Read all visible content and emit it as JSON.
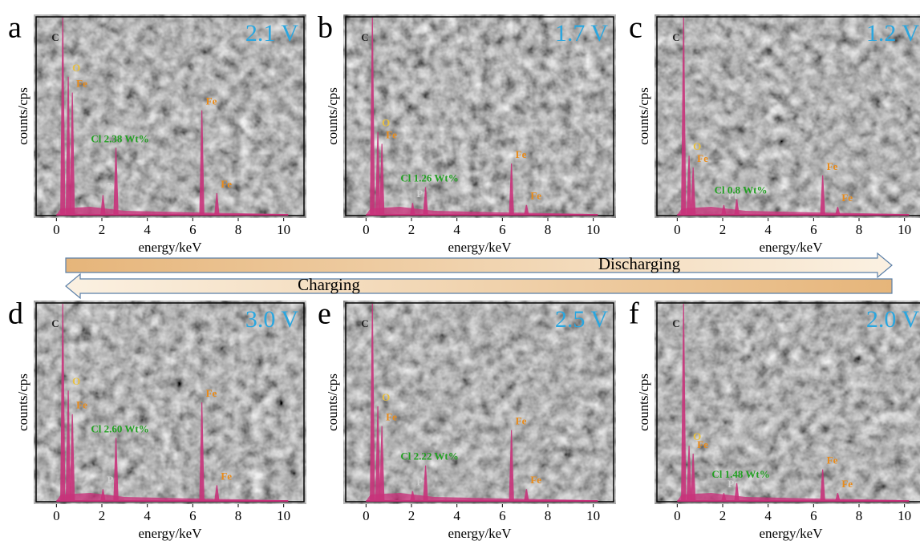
{
  "chart_data": [
    {
      "type": "spectrum",
      "panel": "a",
      "title": "2.1 V",
      "ylabel": "counts/cps",
      "xlabel": "energy/keV",
      "xlim": [
        -1,
        11
      ],
      "xticks": [
        0,
        2,
        4,
        6,
        8,
        10
      ],
      "ylim": [
        0,
        100
      ],
      "color": "#c8327a",
      "x": [
        0.28,
        0.52,
        0.7,
        2.05,
        2.62,
        6.4,
        7.06
      ],
      "values": [
        100,
        70,
        62,
        10,
        34,
        53,
        11
      ],
      "peak_labels": [
        "C",
        "O",
        "Fe",
        "Pt",
        "Cl 2.38 Wt%",
        "Fe",
        "Fe"
      ],
      "peak_colors": [
        "#222222",
        "#e8c040",
        "#e98b1a",
        "#d0d0d0",
        "#22a022",
        "#e98b1a",
        "#e98b1a"
      ]
    },
    {
      "type": "spectrum",
      "panel": "b",
      "title": "1.7 V",
      "ylabel": "counts/cps",
      "xlabel": "energy/keV",
      "xlim": [
        -1,
        11
      ],
      "xticks": [
        0,
        2,
        4,
        6,
        8,
        10
      ],
      "ylim": [
        0,
        100
      ],
      "color": "#c8327a",
      "x": [
        0.28,
        0.52,
        0.7,
        2.05,
        2.62,
        6.4,
        7.06
      ],
      "values": [
        100,
        42,
        36,
        6,
        14,
        26,
        5
      ],
      "peak_labels": [
        "C",
        "O",
        "Fe",
        "Pt",
        "Cl 1.26 Wt%",
        "Fe",
        "Fe"
      ],
      "peak_colors": [
        "#222222",
        "#e8c040",
        "#e98b1a",
        "#d0d0d0",
        "#22a022",
        "#e98b1a",
        "#e98b1a"
      ]
    },
    {
      "type": "spectrum",
      "panel": "c",
      "title": "1.2 V",
      "ylabel": "counts/cps",
      "xlabel": "energy/keV",
      "xlim": [
        -1,
        11
      ],
      "xticks": [
        0,
        2,
        4,
        6,
        8,
        10
      ],
      "ylim": [
        0,
        100
      ],
      "color": "#c8327a",
      "x": [
        0.28,
        0.52,
        0.7,
        2.05,
        2.62,
        6.4,
        7.06
      ],
      "values": [
        100,
        30,
        24,
        5,
        8,
        20,
        4
      ],
      "peak_labels": [
        "C",
        "O",
        "Fe",
        "Pt",
        "Cl 0.8 Wt%",
        "Fe",
        "Fe"
      ],
      "peak_colors": [
        "#222222",
        "#e8c040",
        "#e98b1a",
        "#d0d0d0",
        "#22a022",
        "#e98b1a",
        "#e98b1a"
      ]
    },
    {
      "type": "spectrum",
      "panel": "d",
      "title": "3.0 V",
      "ylabel": "counts/cps",
      "xlabel": "energy/keV",
      "xlim": [
        -1,
        11
      ],
      "xticks": [
        0,
        2,
        4,
        6,
        8,
        10
      ],
      "ylim": [
        0,
        100
      ],
      "color": "#c8327a",
      "x": [
        0.28,
        0.52,
        0.7,
        2.05,
        2.62,
        6.4,
        7.06
      ],
      "values": [
        100,
        56,
        44,
        6,
        32,
        50,
        8
      ],
      "peak_labels": [
        "C",
        "O",
        "Fe",
        "Pt",
        "Cl 2.60 Wt%",
        "Fe",
        "Fe"
      ],
      "peak_colors": [
        "#222222",
        "#e8c040",
        "#e98b1a",
        "#d0d0d0",
        "#22a022",
        "#e98b1a",
        "#e98b1a"
      ]
    },
    {
      "type": "spectrum",
      "panel": "e",
      "title": "2.5 V",
      "ylabel": "counts/cps",
      "xlabel": "energy/keV",
      "xlim": [
        -1,
        11
      ],
      "xticks": [
        0,
        2,
        4,
        6,
        8,
        10
      ],
      "ylim": [
        0,
        100
      ],
      "color": "#c8327a",
      "x": [
        0.28,
        0.52,
        0.7,
        2.05,
        2.62,
        6.4,
        7.06
      ],
      "values": [
        100,
        48,
        38,
        5,
        18,
        36,
        6
      ],
      "peak_labels": [
        "C",
        "O",
        "Fe",
        "Pt",
        "Cl 2.22 Wt%",
        "Fe",
        "Fe"
      ],
      "peak_colors": [
        "#222222",
        "#e8c040",
        "#e98b1a",
        "#d0d0d0",
        "#22a022",
        "#e98b1a",
        "#e98b1a"
      ]
    },
    {
      "type": "spectrum",
      "panel": "f",
      "title": "2.0 V",
      "ylabel": "counts/cps",
      "xlabel": "energy/keV",
      "xlim": [
        -1,
        11
      ],
      "xticks": [
        0,
        2,
        4,
        6,
        8,
        10
      ],
      "ylim": [
        0,
        100
      ],
      "color": "#c8327a",
      "x": [
        0.28,
        0.52,
        0.7,
        2.05,
        2.62,
        6.4,
        7.06
      ],
      "values": [
        100,
        28,
        24,
        4,
        9,
        16,
        4
      ],
      "peak_labels": [
        "C",
        "O",
        "Fe",
        "Pt",
        "Cl 1.48 Wt%",
        "Fe",
        "Fe"
      ],
      "peak_colors": [
        "#222222",
        "#e8c040",
        "#e98b1a",
        "#d0d0d0",
        "#22a022",
        "#e98b1a",
        "#e98b1a"
      ]
    }
  ],
  "arrows": {
    "discharging": "Discharging",
    "charging": "Charging"
  }
}
